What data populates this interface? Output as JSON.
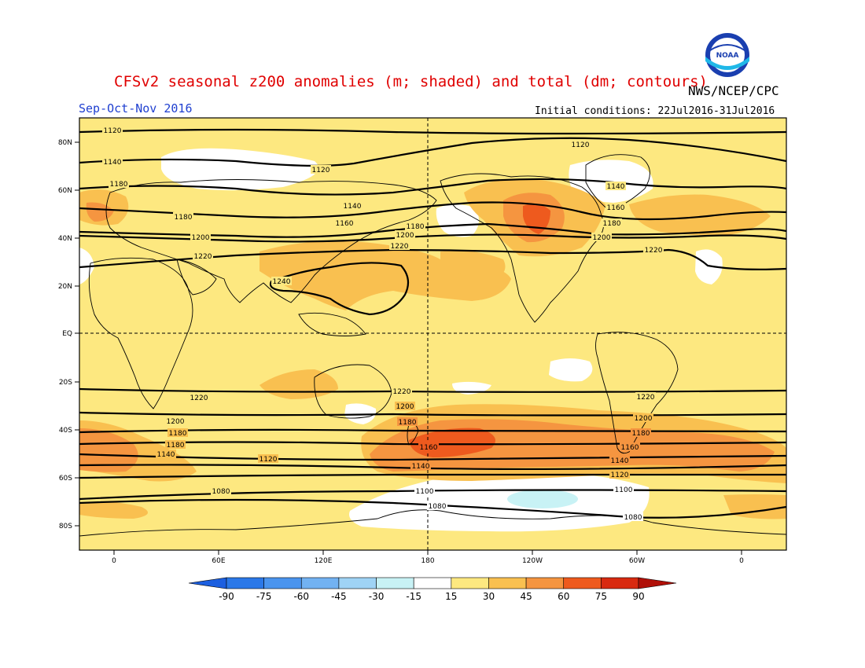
{
  "header": {
    "title": "CFSv2 seasonal z200 anomalies (m; shaded) and total (dm; contours)",
    "agency": "NWS/NCEP/CPC",
    "season": "Sep-Oct-Nov 2016",
    "initial_conditions": "Initial conditions: 22Jul2016-31Jul2016",
    "logo_text": "NOAA"
  },
  "axes": {
    "lat_labels": [
      "80N",
      "60N",
      "40N",
      "20N",
      "EQ",
      "20S",
      "40S",
      "60S",
      "80S"
    ],
    "lon_labels": [
      "0",
      "60E",
      "120E",
      "180",
      "120W",
      "60W",
      "0"
    ]
  },
  "colorbar": {
    "levels": [
      "-90",
      "-75",
      "-60",
      "-45",
      "-30",
      "-15",
      "15",
      "30",
      "45",
      "60",
      "75",
      "90"
    ],
    "colors": [
      "#1c5fe0",
      "#2b78e8",
      "#4a94ee",
      "#72b2f2",
      "#9fd3f5",
      "#c8f2f5",
      "#ffffff",
      "#fde880",
      "#f9c050",
      "#f59540",
      "#ee5a1e",
      "#d82a10",
      "#b01008"
    ]
  },
  "contour_labels": [
    "1120",
    "1140",
    "1160",
    "1180",
    "1200",
    "1220",
    "1240",
    "1100",
    "1080"
  ]
}
